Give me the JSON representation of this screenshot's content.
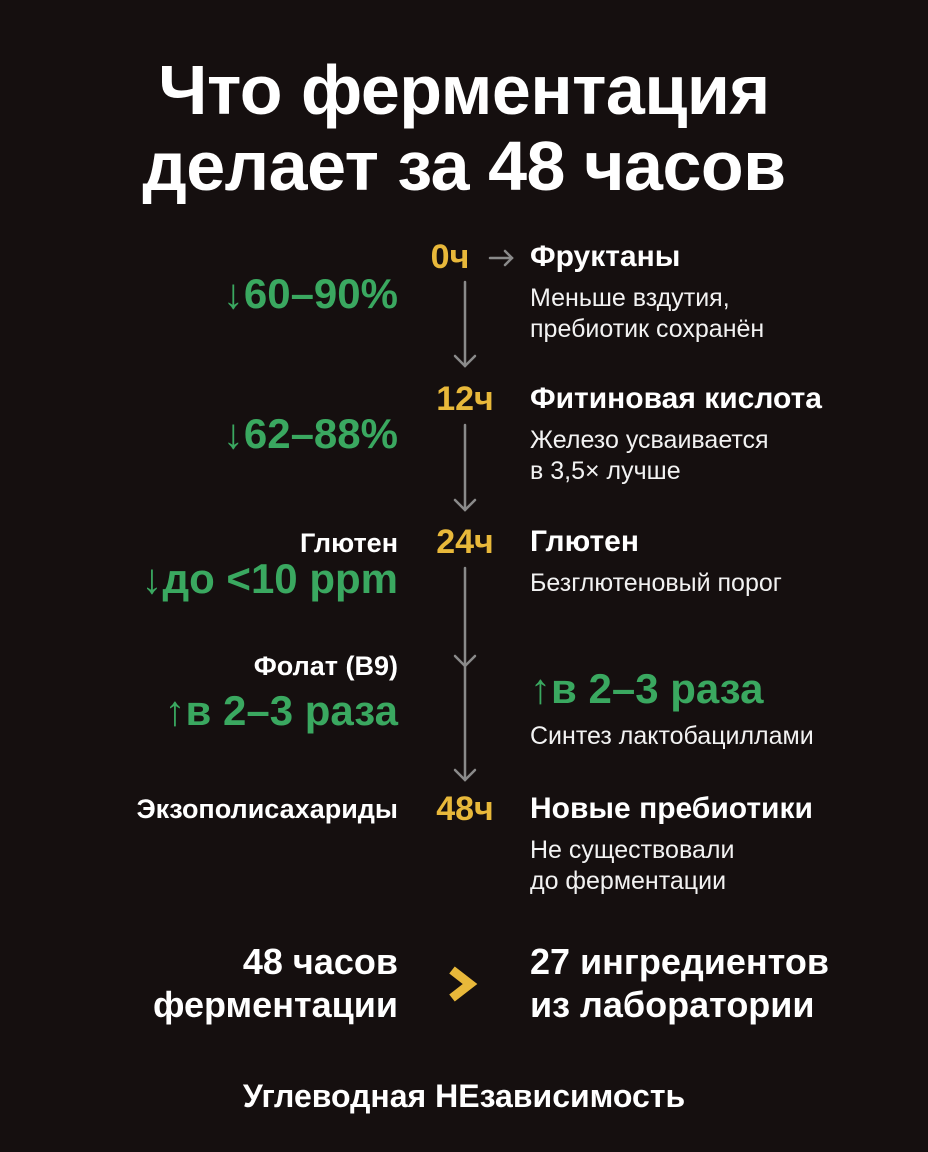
{
  "title": {
    "line1": "Что ферментация",
    "line2": "делает за 48 часов"
  },
  "colors": {
    "background": "#150f0f",
    "time": "#e8b83a",
    "positive": "#3aa860",
    "arrow": "#8a8a8a"
  },
  "timeline": [
    {
      "time": "0ч",
      "effect": "↓60–90%",
      "title": "Фруктаны",
      "desc": [
        "Меньше вздутия,",
        "пребиотик сохранён"
      ]
    },
    {
      "time": "12ч",
      "effect": "↓62–88%",
      "title": "Фитиновая кислота",
      "desc": [
        "Железо усваивается",
        "в 3,5× лучше"
      ]
    },
    {
      "time": "24ч",
      "left_label": "Глютен",
      "effect": "↓до <10 ppm",
      "title": "Глютен",
      "desc": [
        "Безглютеновый порог"
      ]
    },
    {
      "left_label": "Фолат (B9)",
      "effect": "↑в 2–3 раза",
      "right_effect": "↑в 2–3 раза",
      "desc": [
        "Синтез лактобациллами"
      ]
    },
    {
      "time": "48ч",
      "left_label": "Экзополисахариды",
      "title": "Новые пребиотики",
      "desc": [
        "Не существовали",
        "до ферментации"
      ]
    }
  ],
  "comparison": {
    "left": [
      "48 часов",
      "ферментации"
    ],
    "right": [
      "27 ингредиентов",
      "из лаборатории"
    ],
    "icon": "chevron-right-icon"
  },
  "footer": "Углеводная НЕзависимость"
}
